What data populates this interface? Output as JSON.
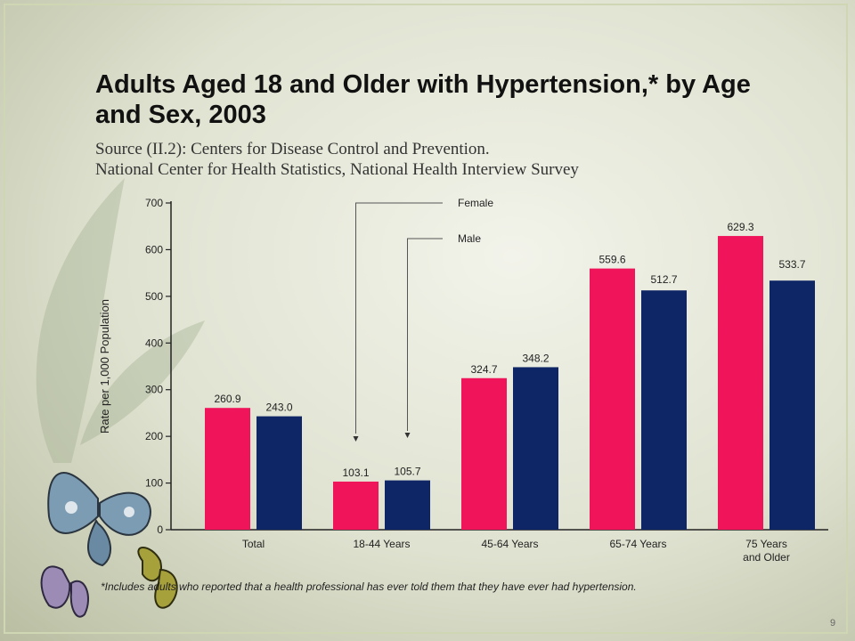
{
  "slide": {
    "title": "Adults Aged 18 and Older with Hypertension,* by Age and Sex, 2003",
    "source_line1": "Source (II.2): Centers for Disease Control and Prevention.",
    "source_line2": "National Center for Health Statistics, National Health Interview Survey",
    "footnote": "*Includes adults who reported that a health professional has ever told them that they have ever had hypertension.",
    "page_number": "9"
  },
  "chart_data": {
    "type": "bar",
    "categories": [
      "Total",
      "18-44 Years",
      "45-64 Years",
      "65-74 Years",
      "75 Years and Older"
    ],
    "series": [
      {
        "name": "Female",
        "color": "#f0145a",
        "values": [
          260.9,
          103.1,
          324.7,
          559.6,
          629.3
        ],
        "labels": [
          "260.9",
          "103.1",
          "324.7",
          "559.6",
          "629.3"
        ]
      },
      {
        "name": "Male",
        "color": "#0e2566",
        "values": [
          243.0,
          105.7,
          348.2,
          512.7,
          533.7
        ],
        "labels": [
          "243.0",
          "105.7",
          "348.2",
          "512.7",
          "533.7"
        ]
      }
    ],
    "ylabel": "Rate per 1,000 Population",
    "ylim": [
      0,
      700
    ],
    "yticks": [
      0,
      100,
      200,
      300,
      400,
      500,
      600,
      700
    ],
    "legend_position": "top-center, with leader lines to the 18-44 Years bars",
    "grid": false
  }
}
